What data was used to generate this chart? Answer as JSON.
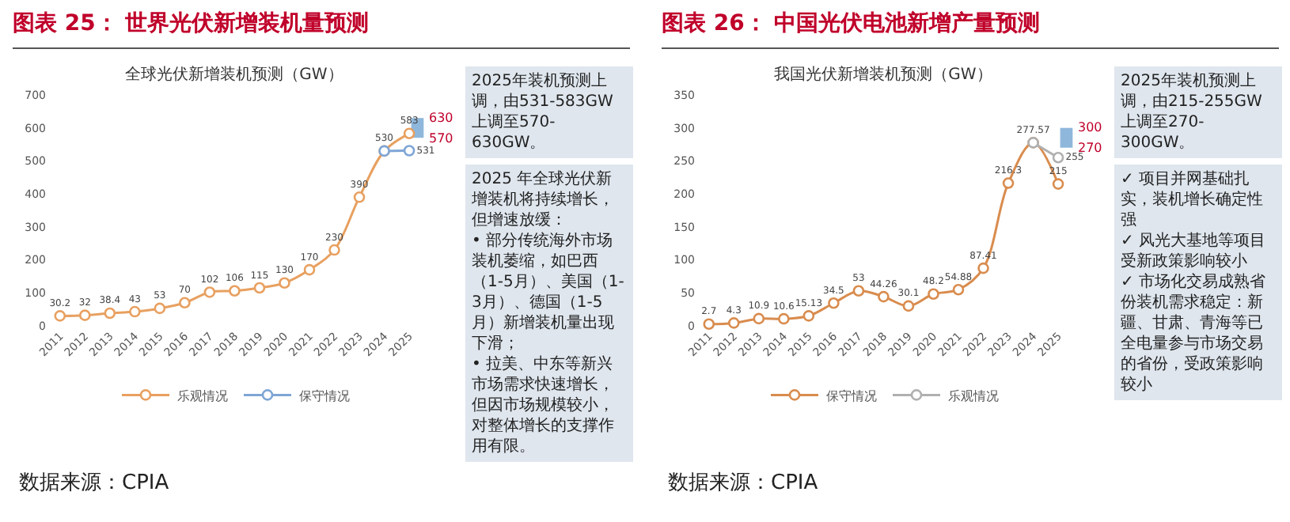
{
  "chart_data": [
    {
      "type": "line",
      "title": "图表 25：  世界光伏新增装机量预测",
      "subtitle": "全球光伏新增装机预测（GW）",
      "categories": [
        "2011",
        "2012",
        "2013",
        "2014",
        "2015",
        "2016",
        "2017",
        "2018",
        "2019",
        "2020",
        "2021",
        "2022",
        "2023",
        "2024",
        "2025"
      ],
      "series": [
        {
          "name": "乐观情况",
          "color": "#e8a060",
          "values": [
            30.2,
            32,
            38.4,
            43,
            53,
            70,
            102,
            106,
            115,
            130,
            170,
            230,
            390,
            530,
            583
          ],
          "value_labels": [
            "30.2",
            "32",
            "38.4",
            "43",
            "53",
            "70",
            "102",
            "106",
            "115",
            "130",
            "170",
            "230",
            "390",
            "530",
            "583"
          ]
        },
        {
          "name": "保守情况",
          "color": "#7ea6d6",
          "values": [
            null,
            null,
            null,
            null,
            null,
            null,
            null,
            null,
            null,
            null,
            null,
            null,
            null,
            530,
            531
          ],
          "value_labels": [
            null,
            null,
            null,
            null,
            null,
            null,
            null,
            null,
            null,
            null,
            null,
            null,
            null,
            null,
            "531"
          ]
        },
        {
          "type": "bar",
          "color": "#6a9fd0",
          "values": [
            null,
            null,
            null,
            null,
            null,
            null,
            null,
            null,
            null,
            null,
            null,
            null,
            null,
            null,
            60
          ],
          "base": [
            null,
            null,
            null,
            null,
            null,
            null,
            null,
            null,
            null,
            null,
            null,
            null,
            null,
            null,
            570
          ]
        }
      ],
      "ylim": [
        0,
        700
      ],
      "yticks": [
        0,
        100,
        200,
        300,
        400,
        500,
        600,
        700
      ],
      "grid": false,
      "legend": "bottom",
      "marker": "circle",
      "annotations": [
        {
          "text": "630",
          "x": "2025",
          "y": 630
        },
        {
          "text": "570",
          "x": "2025",
          "y": 570
        },
        "2025年装机预测上调，由531-583GW上调至570-630GW。",
        "2025 年全球光伏新增装机将持续增长，但增速放缓：\n• 部分传统海外市场装机萎缩，如巴西（1-5月）、美国（1-3月）、德国（1-5月）新增装机量出现下滑；\n• 拉美、中东等新兴市场需求快速增长，但因市场规模较小，对整体增长的支撑作用有限。",
        "数据来源：CPIA"
      ]
    },
    {
      "type": "line",
      "title": "图表 26：  中国光伏电池新增产量预测",
      "subtitle": "我国光伏新增装机预测（GW）",
      "categories": [
        "2011",
        "2012",
        "2013",
        "2014",
        "2015",
        "2016",
        "2017",
        "2018",
        "2019",
        "2020",
        "2021",
        "2022",
        "2023",
        "2024",
        "2025"
      ],
      "series": [
        {
          "name": "保守情况",
          "color": "#d98c4e",
          "values": [
            2.7,
            4.3,
            10.9,
            10.6,
            15.13,
            34.5,
            53,
            44.26,
            30.1,
            48.2,
            54.88,
            87.41,
            216.3,
            277.57,
            215
          ],
          "value_labels": [
            "2.7",
            "4.3",
            "10.9",
            "10.6",
            "15.13",
            "34.5",
            "53",
            "44.26",
            "30.1",
            "48.2",
            "54.88",
            "87.41",
            "216.3",
            "277.57",
            "215"
          ]
        },
        {
          "name": "乐观情况",
          "color": "#b0b0b0",
          "values": [
            null,
            null,
            null,
            null,
            null,
            null,
            null,
            null,
            null,
            null,
            null,
            null,
            null,
            277.57,
            255
          ],
          "value_labels": [
            null,
            null,
            null,
            null,
            null,
            null,
            null,
            null,
            null,
            null,
            null,
            null,
            null,
            null,
            "255"
          ]
        },
        {
          "type": "bar",
          "color": "#6a9fd0",
          "values": [
            null,
            null,
            null,
            null,
            null,
            null,
            null,
            null,
            null,
            null,
            null,
            null,
            null,
            null,
            30
          ],
          "base": [
            null,
            null,
            null,
            null,
            null,
            null,
            null,
            null,
            null,
            null,
            null,
            null,
            null,
            null,
            270
          ]
        }
      ],
      "ylim": [
        0,
        350
      ],
      "yticks": [
        0,
        50,
        100,
        150,
        200,
        250,
        300,
        350
      ],
      "grid": false,
      "legend": "bottom",
      "marker": "circle",
      "annotations": [
        {
          "text": "300",
          "x": "2025",
          "y": 300
        },
        {
          "text": "270",
          "x": "2025",
          "y": 270
        },
        "2025年装机预测上调，由215-255GW上调至270-300GW。",
        "✓ 项目并网基础扎实，装机增长确定性强\n✓ 风光大基地等项目受新政策影响较小\n✓ 市场化交易成熟省份装机需求稳定：新疆、甘肃、青海等已全电量参与市场交易的省份，受政策影响较小",
        "数据来源：CPIA"
      ]
    }
  ]
}
